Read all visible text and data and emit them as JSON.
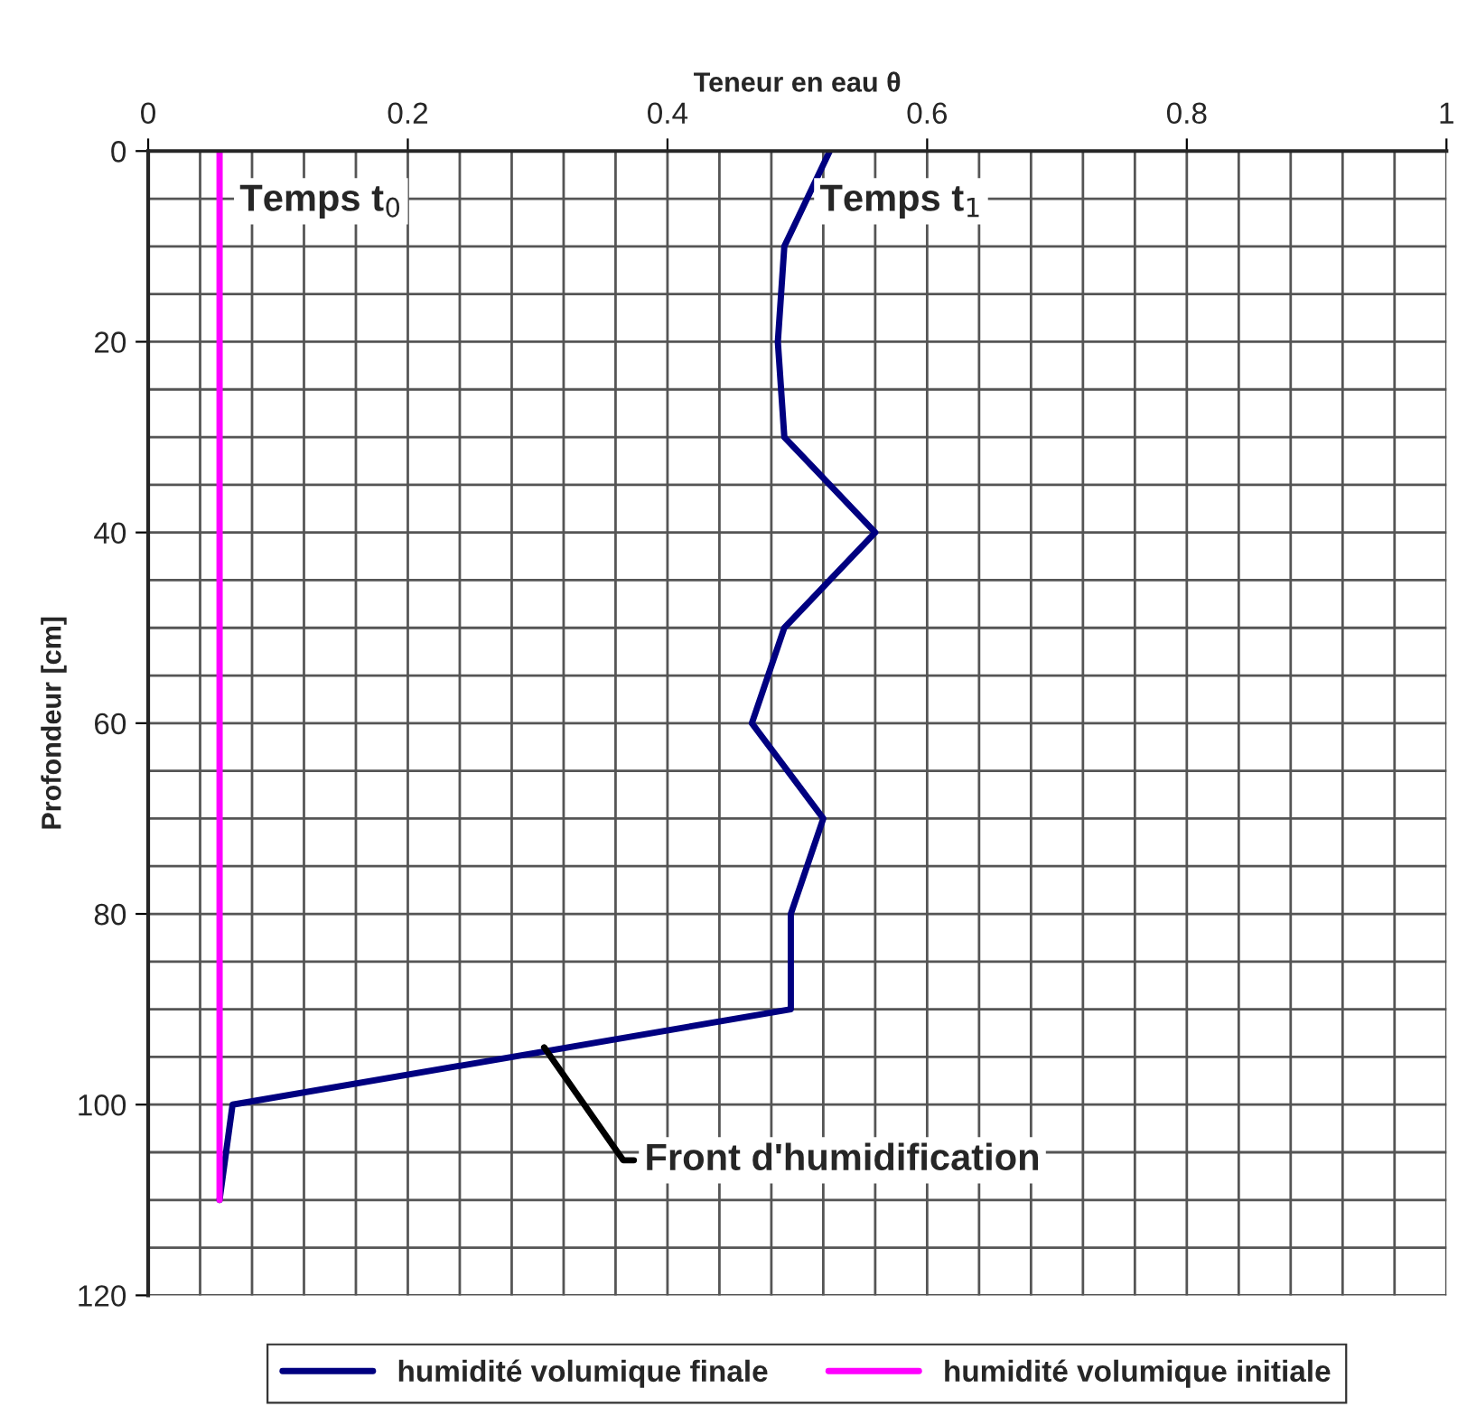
{
  "chart_data": {
    "type": "line",
    "xlabel": "Teneur en eau θ",
    "ylabel": "Profondeur [cm]",
    "orientation": "horizontal",
    "x": [
      0,
      10,
      20,
      30,
      40,
      50,
      60,
      70,
      80,
      90,
      100,
      110
    ],
    "series": [
      {
        "name": "humidité volumique finale",
        "color": "#000080",
        "values": [
          0.525,
          0.49,
          0.485,
          0.49,
          0.56,
          0.49,
          0.465,
          0.52,
          0.495,
          0.495,
          0.065,
          0.055
        ]
      },
      {
        "name": "humidité volumique initiale",
        "color": "#ff00ff",
        "x": [
          0,
          110
        ],
        "values": [
          0.055,
          0.055
        ]
      }
    ],
    "xlim": [
      0,
      1
    ],
    "xticks": [
      0,
      {
        "value": 0.04,
        "label": null
      },
      {
        "value": 0.08,
        "label": null
      },
      {
        "value": 0.12,
        "label": null
      },
      {
        "value": 0.16,
        "label": null
      },
      0.2,
      {
        "value": 0.24,
        "label": null
      },
      {
        "value": 0.28,
        "label": null
      },
      {
        "value": 0.32,
        "label": null
      },
      {
        "value": 0.36,
        "label": null
      },
      0.4,
      {
        "value": 0.44,
        "label": null
      },
      {
        "value": 0.48,
        "label": null
      },
      {
        "value": 0.52,
        "label": null
      },
      {
        "value": 0.56,
        "label": null
      },
      0.6,
      {
        "value": 0.64,
        "label": null
      },
      {
        "value": 0.68,
        "label": null
      },
      {
        "value": 0.72,
        "label": null
      },
      {
        "value": 0.76,
        "label": null
      },
      0.8,
      {
        "value": 0.84,
        "label": null
      },
      {
        "value": 0.88,
        "label": null
      },
      {
        "value": 0.92,
        "label": null
      },
      {
        "value": 0.96,
        "label": null
      },
      1
    ],
    "ylim": [
      120,
      0
    ],
    "yticks": [
      0,
      {
        "value": 5,
        "label": null
      },
      {
        "value": 10,
        "label": null
      },
      {
        "value": 15,
        "label": null
      },
      20,
      {
        "value": 25,
        "label": null
      },
      {
        "value": 30,
        "label": null
      },
      {
        "value": 35,
        "label": null
      },
      40,
      {
        "value": 45,
        "label": null
      },
      {
        "value": 50,
        "label": null
      },
      {
        "value": 55,
        "label": null
      },
      60,
      {
        "value": 65,
        "label": null
      },
      {
        "value": 70,
        "label": null
      },
      {
        "value": 75,
        "label": null
      },
      80,
      {
        "value": 85,
        "label": null
      },
      {
        "value": 90,
        "label": null
      },
      {
        "value": 95,
        "label": null
      },
      100,
      {
        "value": 105,
        "label": null
      },
      {
        "value": 110,
        "label": null
      },
      {
        "value": 115,
        "label": null
      },
      120
    ],
    "annotations": [
      {
        "text": "Temps t$_{0}$",
        "x": 0.055,
        "y": 0
      },
      {
        "text": "Temps t$_{1}$",
        "x": 0.525,
        "y": 0
      },
      {
        "text": "Front d'humidification",
        "x": 0.305,
        "y": 94
      }
    ],
    "grid": true,
    "legend": "bottom",
    "marker": "none",
    "line_style": "solid"
  }
}
